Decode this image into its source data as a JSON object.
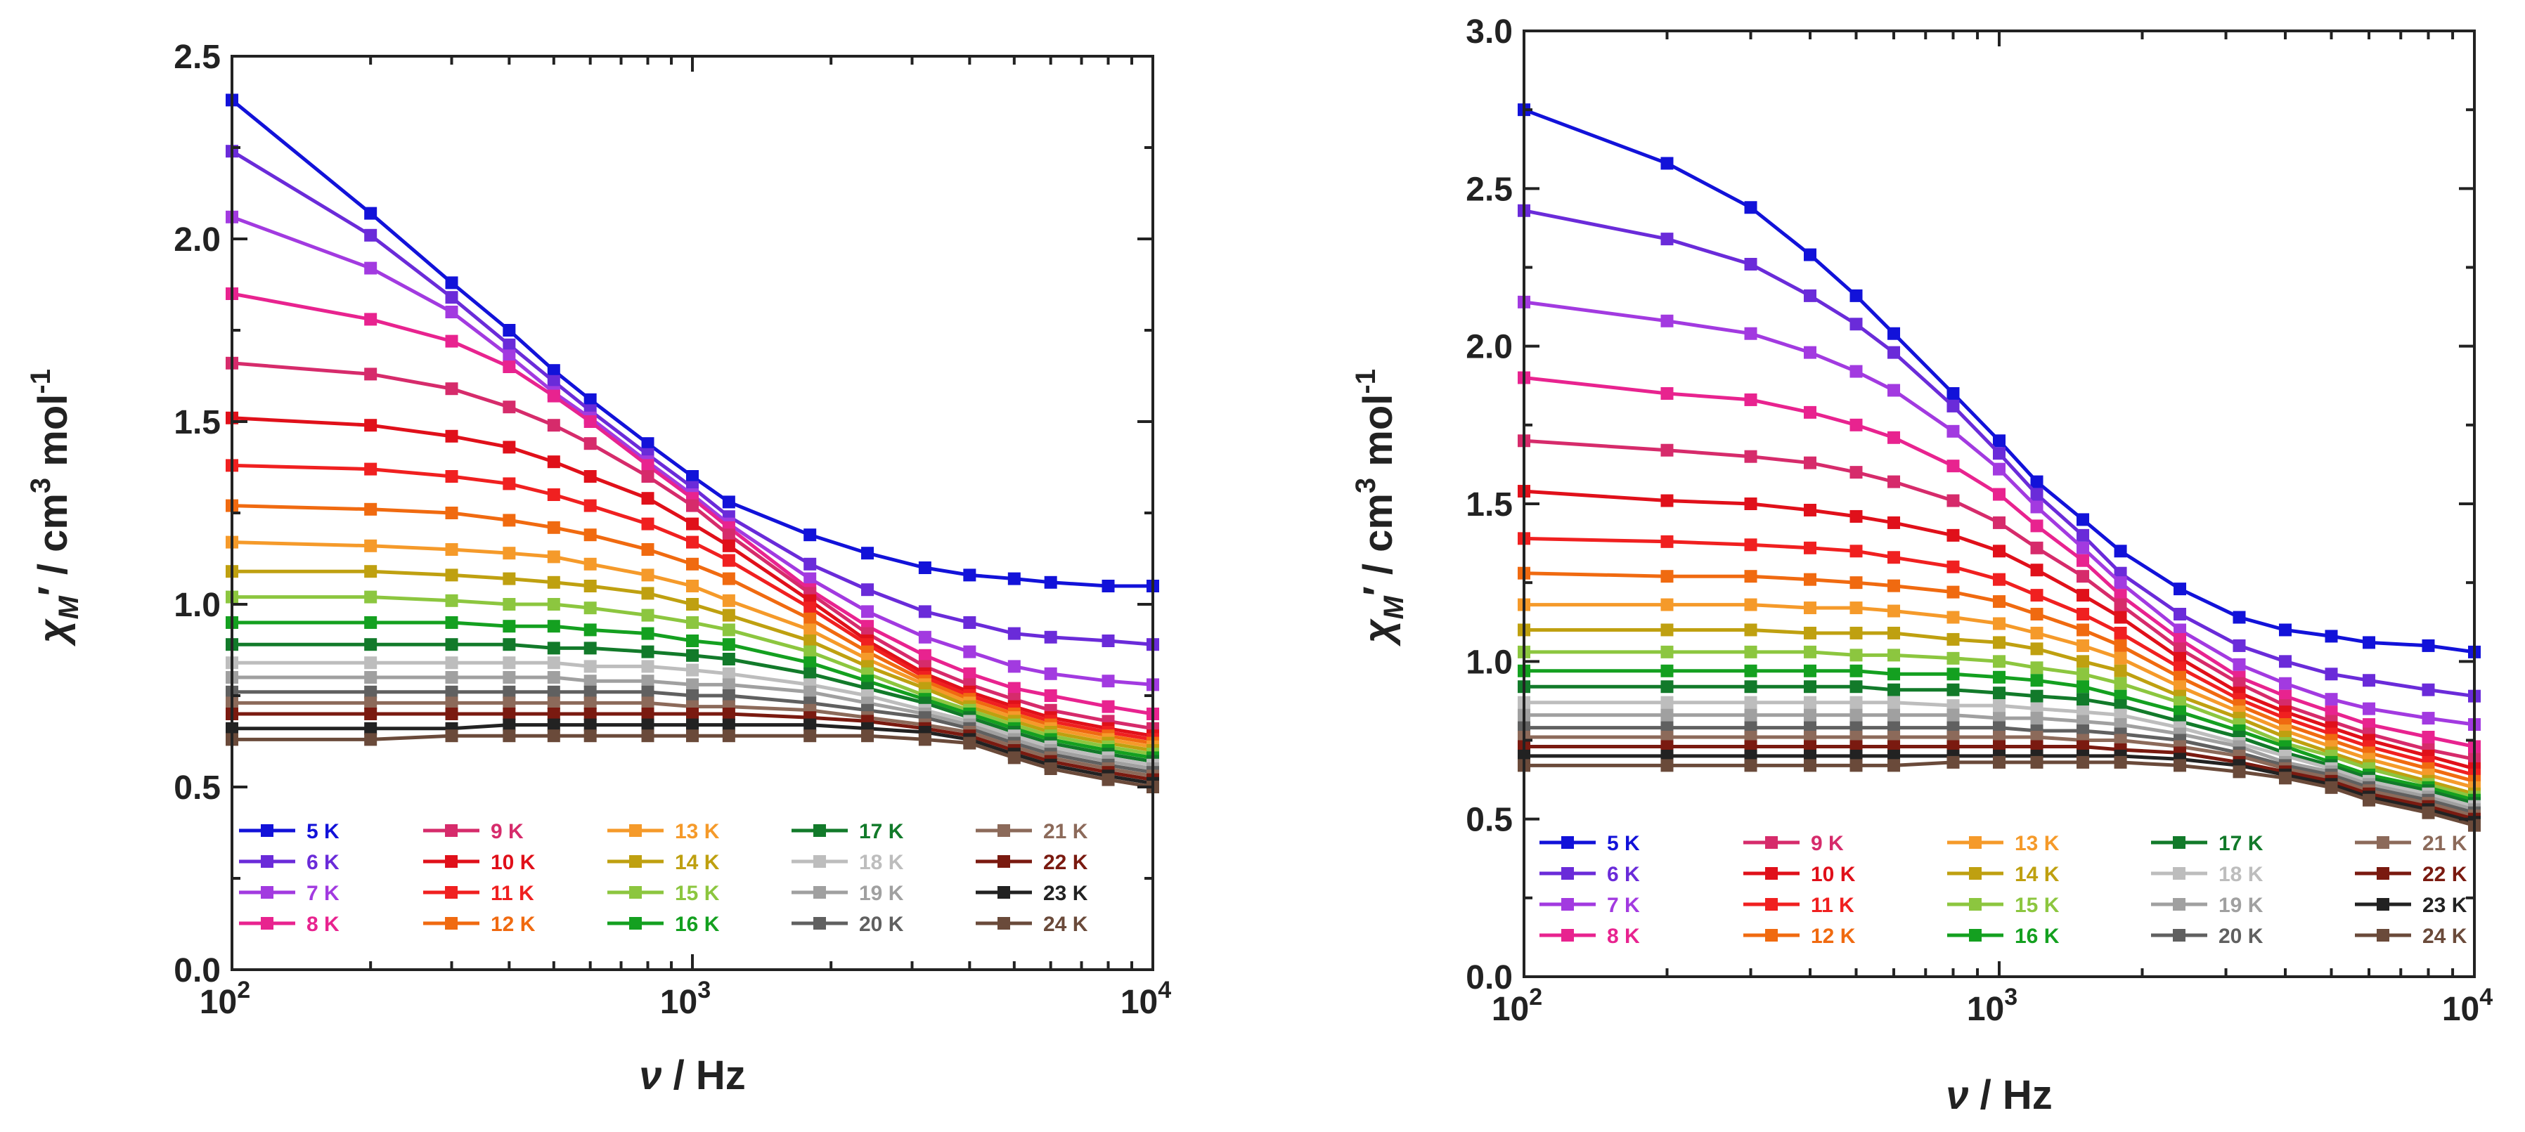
{
  "temperatures": [
    "5 K",
    "6 K",
    "7 K",
    "8 K",
    "9 K",
    "10 K",
    "11 K",
    "12 K",
    "13 K",
    "14 K",
    "15 K",
    "16 K",
    "17 K",
    "18 K",
    "19 K",
    "20 K",
    "21 K",
    "22 K",
    "23 K",
    "24 K"
  ],
  "colors": [
    "#1212d9",
    "#6a2bd9",
    "#a23ae0",
    "#e8238f",
    "#d62b6b",
    "#e0101a",
    "#f02020",
    "#f06a10",
    "#f59a2a",
    "#bfa010",
    "#8cc63f",
    "#14a020",
    "#127a2a",
    "#bdbdbd",
    "#a0a0a0",
    "#606060",
    "#8c6a5a",
    "#7a1a10",
    "#222222",
    "#6a4a3a"
  ],
  "chart_data": [
    {
      "type": "line",
      "xlabel": "ν / Hz",
      "ylabel": "χM′ / cm3 mol-1",
      "xscale": "log",
      "xlim": [
        100,
        10000
      ],
      "ylim": [
        0.0,
        2.5
      ],
      "yticks": [
        "0.0",
        "0.5",
        "1.0",
        "1.5",
        "2.0",
        "2.5"
      ],
      "xticks": [
        "10^2",
        "10^3",
        "10^4"
      ],
      "x": [
        100,
        200,
        300,
        400,
        500,
        600,
        800,
        1000,
        1200,
        1800,
        2400,
        3200,
        4000,
        5000,
        6000,
        8000,
        10000
      ],
      "series": [
        {
          "name": "5 K",
          "values": [
            2.38,
            2.07,
            1.88,
            1.75,
            1.64,
            1.56,
            1.44,
            1.35,
            1.28,
            1.19,
            1.14,
            1.1,
            1.08,
            1.07,
            1.06,
            1.05,
            1.05
          ]
        },
        {
          "name": "6 K",
          "values": [
            2.24,
            2.01,
            1.84,
            1.71,
            1.61,
            1.53,
            1.41,
            1.32,
            1.24,
            1.11,
            1.04,
            0.98,
            0.95,
            0.92,
            0.91,
            0.9,
            0.89
          ]
        },
        {
          "name": "7 K",
          "values": [
            2.06,
            1.92,
            1.8,
            1.68,
            1.58,
            1.51,
            1.39,
            1.3,
            1.22,
            1.07,
            0.98,
            0.91,
            0.87,
            0.83,
            0.81,
            0.79,
            0.78
          ]
        },
        {
          "name": "8 K",
          "values": [
            1.85,
            1.78,
            1.72,
            1.65,
            1.57,
            1.5,
            1.38,
            1.29,
            1.21,
            1.04,
            0.94,
            0.86,
            0.81,
            0.77,
            0.75,
            0.72,
            0.7
          ]
        },
        {
          "name": "9 K",
          "values": [
            1.66,
            1.63,
            1.59,
            1.54,
            1.49,
            1.44,
            1.35,
            1.27,
            1.19,
            1.03,
            0.92,
            0.83,
            0.78,
            0.74,
            0.71,
            0.68,
            0.66
          ]
        },
        {
          "name": "10 K",
          "values": [
            1.51,
            1.49,
            1.46,
            1.43,
            1.39,
            1.35,
            1.29,
            1.22,
            1.16,
            1.01,
            0.9,
            0.81,
            0.76,
            0.72,
            0.69,
            0.66,
            0.64
          ]
        },
        {
          "name": "11 K",
          "values": [
            1.38,
            1.37,
            1.35,
            1.33,
            1.3,
            1.27,
            1.22,
            1.17,
            1.12,
            0.99,
            0.89,
            0.8,
            0.75,
            0.71,
            0.68,
            0.65,
            0.63
          ]
        },
        {
          "name": "12 K",
          "values": [
            1.27,
            1.26,
            1.25,
            1.23,
            1.21,
            1.19,
            1.15,
            1.11,
            1.07,
            0.96,
            0.87,
            0.79,
            0.74,
            0.7,
            0.67,
            0.64,
            0.62
          ]
        },
        {
          "name": "13 K",
          "values": [
            1.17,
            1.16,
            1.15,
            1.14,
            1.13,
            1.11,
            1.08,
            1.05,
            1.01,
            0.93,
            0.85,
            0.78,
            0.73,
            0.69,
            0.66,
            0.63,
            0.61
          ]
        },
        {
          "name": "14 K",
          "values": [
            1.09,
            1.09,
            1.08,
            1.07,
            1.06,
            1.05,
            1.03,
            1.0,
            0.97,
            0.9,
            0.83,
            0.77,
            0.72,
            0.68,
            0.65,
            0.62,
            0.6
          ]
        },
        {
          "name": "15 K",
          "values": [
            1.02,
            1.02,
            1.01,
            1.0,
            1.0,
            0.99,
            0.97,
            0.95,
            0.93,
            0.87,
            0.81,
            0.75,
            0.71,
            0.67,
            0.64,
            0.61,
            0.59
          ]
        },
        {
          "name": "16 K",
          "values": [
            0.95,
            0.95,
            0.95,
            0.94,
            0.94,
            0.93,
            0.92,
            0.9,
            0.89,
            0.84,
            0.79,
            0.74,
            0.7,
            0.66,
            0.63,
            0.6,
            0.58
          ]
        },
        {
          "name": "17 K",
          "values": [
            0.89,
            0.89,
            0.89,
            0.89,
            0.88,
            0.88,
            0.87,
            0.86,
            0.85,
            0.81,
            0.77,
            0.73,
            0.69,
            0.65,
            0.62,
            0.59,
            0.57
          ]
        },
        {
          "name": "18 K",
          "values": [
            0.84,
            0.84,
            0.84,
            0.84,
            0.84,
            0.83,
            0.83,
            0.82,
            0.81,
            0.78,
            0.75,
            0.71,
            0.68,
            0.64,
            0.61,
            0.58,
            0.56
          ]
        },
        {
          "name": "19 K",
          "values": [
            0.8,
            0.8,
            0.8,
            0.8,
            0.8,
            0.79,
            0.79,
            0.78,
            0.78,
            0.76,
            0.73,
            0.7,
            0.67,
            0.63,
            0.6,
            0.57,
            0.55
          ]
        },
        {
          "name": "20 K",
          "values": [
            0.76,
            0.76,
            0.76,
            0.76,
            0.76,
            0.76,
            0.76,
            0.75,
            0.75,
            0.73,
            0.71,
            0.69,
            0.66,
            0.62,
            0.59,
            0.56,
            0.54
          ]
        },
        {
          "name": "21 K",
          "values": [
            0.73,
            0.73,
            0.73,
            0.73,
            0.73,
            0.73,
            0.73,
            0.72,
            0.72,
            0.71,
            0.69,
            0.67,
            0.65,
            0.61,
            0.58,
            0.55,
            0.53
          ]
        },
        {
          "name": "22 K",
          "values": [
            0.7,
            0.7,
            0.7,
            0.7,
            0.7,
            0.7,
            0.7,
            0.7,
            0.7,
            0.69,
            0.68,
            0.66,
            0.64,
            0.6,
            0.57,
            0.54,
            0.52
          ]
        },
        {
          "name": "23 K",
          "values": [
            0.66,
            0.66,
            0.66,
            0.67,
            0.67,
            0.67,
            0.67,
            0.67,
            0.67,
            0.67,
            0.66,
            0.65,
            0.63,
            0.59,
            0.56,
            0.53,
            0.51
          ]
        },
        {
          "name": "24 K",
          "values": [
            0.63,
            0.63,
            0.64,
            0.64,
            0.64,
            0.64,
            0.64,
            0.64,
            0.64,
            0.64,
            0.64,
            0.63,
            0.62,
            0.58,
            0.55,
            0.52,
            0.5
          ]
        }
      ]
    },
    {
      "type": "line",
      "xlabel": "ν / Hz",
      "ylabel": "χM′ / cm3 mol-1",
      "xscale": "log",
      "xlim": [
        100,
        10000
      ],
      "ylim": [
        0.0,
        3.0
      ],
      "yticks": [
        "0.0",
        "0.5",
        "1.0",
        "1.5",
        "2.0",
        "2.5",
        "3.0"
      ],
      "xticks": [
        "10^2",
        "10^3",
        "10^4"
      ],
      "x": [
        100,
        200,
        300,
        400,
        500,
        600,
        800,
        1000,
        1200,
        1500,
        1800,
        2400,
        3200,
        4000,
        5000,
        6000,
        8000,
        10000
      ],
      "series": [
        {
          "name": "5 K",
          "values": [
            2.75,
            2.58,
            2.44,
            2.29,
            2.16,
            2.04,
            1.85,
            1.7,
            1.57,
            1.45,
            1.35,
            1.23,
            1.14,
            1.1,
            1.08,
            1.06,
            1.05,
            1.03
          ]
        },
        {
          "name": "6 K",
          "values": [
            2.43,
            2.34,
            2.26,
            2.16,
            2.07,
            1.98,
            1.81,
            1.66,
            1.53,
            1.4,
            1.28,
            1.15,
            1.05,
            1.0,
            0.96,
            0.94,
            0.91,
            0.89
          ]
        },
        {
          "name": "7 K",
          "values": [
            2.14,
            2.08,
            2.04,
            1.98,
            1.92,
            1.86,
            1.73,
            1.61,
            1.49,
            1.36,
            1.25,
            1.1,
            0.99,
            0.93,
            0.88,
            0.85,
            0.82,
            0.8
          ]
        },
        {
          "name": "8 K",
          "values": [
            1.9,
            1.85,
            1.83,
            1.79,
            1.75,
            1.71,
            1.62,
            1.53,
            1.43,
            1.32,
            1.21,
            1.07,
            0.95,
            0.89,
            0.84,
            0.8,
            0.76,
            0.73
          ]
        },
        {
          "name": "9 K",
          "values": [
            1.7,
            1.67,
            1.65,
            1.63,
            1.6,
            1.57,
            1.51,
            1.44,
            1.36,
            1.27,
            1.18,
            1.04,
            0.93,
            0.86,
            0.81,
            0.77,
            0.72,
            0.69
          ]
        },
        {
          "name": "10 K",
          "values": [
            1.54,
            1.51,
            1.5,
            1.48,
            1.46,
            1.44,
            1.4,
            1.35,
            1.29,
            1.21,
            1.14,
            1.01,
            0.9,
            0.84,
            0.79,
            0.75,
            0.7,
            0.66
          ]
        },
        {
          "name": "11 K",
          "values": [
            1.39,
            1.38,
            1.37,
            1.36,
            1.35,
            1.33,
            1.3,
            1.26,
            1.21,
            1.15,
            1.09,
            0.98,
            0.88,
            0.82,
            0.77,
            0.73,
            0.68,
            0.64
          ]
        },
        {
          "name": "12 K",
          "values": [
            1.28,
            1.27,
            1.27,
            1.26,
            1.25,
            1.24,
            1.22,
            1.19,
            1.15,
            1.1,
            1.05,
            0.95,
            0.86,
            0.8,
            0.75,
            0.71,
            0.66,
            0.62
          ]
        },
        {
          "name": "13 K",
          "values": [
            1.18,
            1.18,
            1.18,
            1.17,
            1.17,
            1.16,
            1.14,
            1.12,
            1.09,
            1.05,
            1.01,
            0.92,
            0.84,
            0.78,
            0.73,
            0.69,
            0.64,
            0.6
          ]
        },
        {
          "name": "14 K",
          "values": [
            1.1,
            1.1,
            1.1,
            1.09,
            1.09,
            1.09,
            1.07,
            1.06,
            1.04,
            1.0,
            0.97,
            0.89,
            0.82,
            0.76,
            0.71,
            0.67,
            0.62,
            0.58
          ]
        },
        {
          "name": "15 K",
          "values": [
            1.03,
            1.03,
            1.03,
            1.03,
            1.02,
            1.02,
            1.01,
            1.0,
            0.98,
            0.96,
            0.93,
            0.87,
            0.8,
            0.74,
            0.7,
            0.66,
            0.61,
            0.57
          ]
        },
        {
          "name": "16 K",
          "values": [
            0.97,
            0.97,
            0.97,
            0.97,
            0.97,
            0.96,
            0.96,
            0.95,
            0.94,
            0.92,
            0.89,
            0.84,
            0.78,
            0.73,
            0.68,
            0.64,
            0.6,
            0.56
          ]
        },
        {
          "name": "17 K",
          "values": [
            0.92,
            0.92,
            0.92,
            0.92,
            0.92,
            0.91,
            0.91,
            0.9,
            0.89,
            0.88,
            0.86,
            0.81,
            0.76,
            0.71,
            0.67,
            0.63,
            0.59,
            0.55
          ]
        },
        {
          "name": "18 K",
          "values": [
            0.87,
            0.87,
            0.87,
            0.87,
            0.87,
            0.87,
            0.86,
            0.86,
            0.85,
            0.84,
            0.83,
            0.79,
            0.74,
            0.7,
            0.66,
            0.62,
            0.58,
            0.54
          ]
        },
        {
          "name": "19 K",
          "values": [
            0.83,
            0.83,
            0.83,
            0.83,
            0.83,
            0.83,
            0.83,
            0.82,
            0.82,
            0.81,
            0.8,
            0.77,
            0.73,
            0.68,
            0.65,
            0.61,
            0.57,
            0.53
          ]
        },
        {
          "name": "20 K",
          "values": [
            0.79,
            0.79,
            0.79,
            0.79,
            0.79,
            0.79,
            0.79,
            0.79,
            0.78,
            0.78,
            0.77,
            0.75,
            0.71,
            0.67,
            0.64,
            0.6,
            0.56,
            0.52
          ]
        },
        {
          "name": "21 K",
          "values": [
            0.76,
            0.76,
            0.76,
            0.76,
            0.76,
            0.76,
            0.76,
            0.76,
            0.76,
            0.75,
            0.75,
            0.73,
            0.7,
            0.66,
            0.63,
            0.59,
            0.55,
            0.51
          ]
        },
        {
          "name": "22 K",
          "values": [
            0.73,
            0.73,
            0.73,
            0.73,
            0.73,
            0.73,
            0.73,
            0.73,
            0.73,
            0.73,
            0.72,
            0.71,
            0.68,
            0.65,
            0.62,
            0.58,
            0.54,
            0.5
          ]
        },
        {
          "name": "23 K",
          "values": [
            0.7,
            0.7,
            0.7,
            0.7,
            0.7,
            0.7,
            0.7,
            0.7,
            0.7,
            0.7,
            0.7,
            0.69,
            0.67,
            0.64,
            0.61,
            0.57,
            0.53,
            0.49
          ]
        },
        {
          "name": "24 K",
          "values": [
            0.67,
            0.67,
            0.67,
            0.67,
            0.67,
            0.67,
            0.68,
            0.68,
            0.68,
            0.68,
            0.68,
            0.67,
            0.65,
            0.63,
            0.6,
            0.56,
            0.52,
            0.48
          ]
        }
      ]
    }
  ]
}
